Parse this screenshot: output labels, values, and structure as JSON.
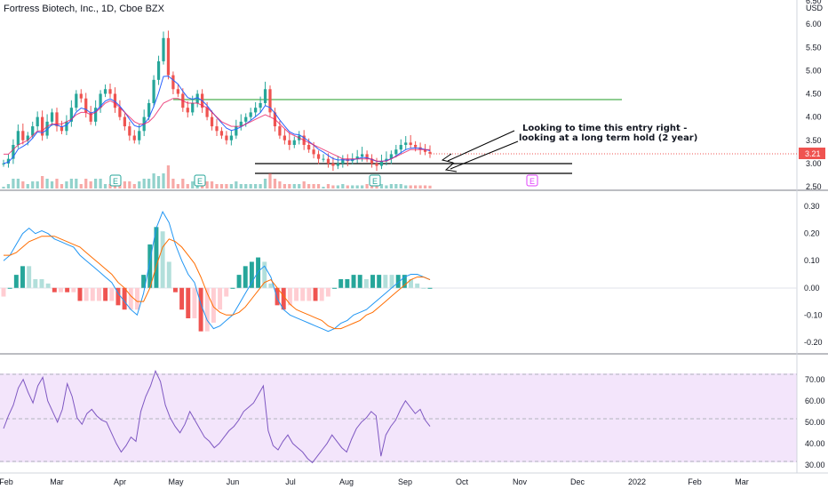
{
  "chart_data": {
    "type": "candlestick-with-indicators",
    "title": "Fortress Biotech, Inc., 1D, Cboe BZX",
    "currency": "USD",
    "last_price": "3.21",
    "x_ticks": [
      "Feb",
      "Mar",
      "Apr",
      "May",
      "Jun",
      "Jul",
      "Aug",
      "Sep",
      "Oct",
      "Nov",
      "Dec",
      "2022",
      "Feb",
      "Mar"
    ],
    "price_panel": {
      "y_ticks": [
        "6.50",
        "6.00",
        "5.50",
        "5.00",
        "4.50",
        "4.00",
        "3.50",
        "3.00",
        "2.50"
      ],
      "ylim": [
        2.5,
        6.5
      ],
      "horizontal_lines": [
        {
          "price": 4.35,
          "color": "#4caf50",
          "from": "Apr",
          "to": "Dec"
        },
        {
          "price": 3.0,
          "color": "#000000",
          "from": "Jun",
          "to": "Nov"
        },
        {
          "price": 2.8,
          "color": "#000000",
          "from": "Jun",
          "to": "Nov"
        }
      ],
      "earnings_markers": [
        "E",
        "E",
        "E",
        "E"
      ],
      "annotation": "Looking to time this entry right - looking at a long term hold (2 year)",
      "close": [
        3.0,
        3.1,
        3.4,
        3.7,
        3.5,
        3.6,
        3.8,
        4.0,
        3.6,
        3.9,
        4.1,
        3.8,
        3.7,
        3.9,
        4.2,
        4.5,
        4.4,
        4.1,
        3.9,
        4.2,
        4.5,
        4.6,
        4.5,
        4.2,
        4.0,
        3.8,
        3.6,
        3.5,
        3.7,
        4.0,
        4.3,
        4.8,
        5.2,
        5.7,
        4.9,
        4.6,
        4.5,
        4.2,
        4.1,
        4.3,
        4.5,
        4.2,
        4.0,
        3.8,
        3.7,
        3.6,
        3.5,
        3.6,
        3.8,
        3.9,
        4.0,
        4.1,
        4.2,
        4.3,
        4.6,
        4.1,
        3.8,
        3.6,
        3.5,
        3.4,
        3.5,
        3.6,
        3.4,
        3.3,
        3.2,
        3.1,
        3.1,
        3.0,
        2.95,
        3.0,
        3.1,
        3.05,
        3.1,
        3.15,
        3.2,
        3.1,
        3.0,
        2.95,
        3.05,
        3.1,
        3.2,
        3.3,
        3.4,
        3.45,
        3.4,
        3.35,
        3.3,
        3.25,
        3.21
      ],
      "ma_slow": [
        3.2,
        3.2,
        3.3,
        3.4,
        3.45,
        3.5,
        3.6,
        3.7,
        3.7,
        3.8,
        3.85,
        3.85,
        3.85,
        3.9,
        3.95,
        4.05,
        4.1,
        4.1,
        4.05,
        4.1,
        4.2,
        4.3,
        4.35,
        4.3,
        4.2,
        4.1,
        4.0,
        3.9,
        3.85,
        3.85,
        3.9,
        4.0,
        4.15,
        4.3,
        4.35,
        4.4,
        4.4,
        4.35,
        4.3,
        4.3,
        4.3,
        4.25,
        4.2,
        4.1,
        4.0,
        3.9,
        3.85,
        3.8,
        3.8,
        3.8,
        3.85,
        3.9,
        3.95,
        4.0,
        4.05,
        4.0,
        3.95,
        3.85,
        3.75,
        3.65,
        3.6,
        3.55,
        3.5,
        3.45,
        3.4,
        3.35,
        3.3,
        3.25,
        3.2,
        3.15,
        3.1,
        3.1,
        3.1,
        3.1,
        3.1,
        3.1,
        3.1,
        3.05,
        3.05,
        3.05,
        3.1,
        3.15,
        3.2,
        3.25,
        3.3,
        3.3,
        3.3,
        3.3,
        3.3
      ]
    },
    "macd_panel": {
      "y_ticks": [
        "0.30",
        "0.20",
        "0.10",
        "0.00",
        "-0.10",
        "-0.20"
      ],
      "ylim": [
        -0.22,
        0.32
      ],
      "macd": [
        0.1,
        0.12,
        0.16,
        0.2,
        0.22,
        0.2,
        0.21,
        0.2,
        0.18,
        0.17,
        0.16,
        0.15,
        0.12,
        0.1,
        0.08,
        0.06,
        0.04,
        0.02,
        -0.02,
        -0.05,
        -0.08,
        -0.1,
        -0.02,
        0.1,
        0.22,
        0.28,
        0.24,
        0.16,
        0.1,
        0.05,
        0.02,
        -0.06,
        -0.12,
        -0.15,
        -0.14,
        -0.12,
        -0.1,
        -0.06,
        -0.02,
        0.02,
        0.06,
        0.08,
        0.04,
        -0.04,
        -0.08,
        -0.1,
        -0.11,
        -0.12,
        -0.13,
        -0.14,
        -0.15,
        -0.16,
        -0.15,
        -0.13,
        -0.12,
        -0.1,
        -0.09,
        -0.08,
        -0.06,
        -0.04,
        -0.02,
        0.0,
        0.02,
        0.04,
        0.05,
        0.05,
        0.04,
        0.03
      ],
      "signal": [
        0.12,
        0.12,
        0.13,
        0.15,
        0.17,
        0.18,
        0.19,
        0.19,
        0.19,
        0.18,
        0.17,
        0.16,
        0.15,
        0.13,
        0.11,
        0.09,
        0.07,
        0.05,
        0.02,
        0.0,
        -0.03,
        -0.05,
        -0.05,
        0.0,
        0.08,
        0.15,
        0.18,
        0.17,
        0.15,
        0.12,
        0.09,
        0.04,
        -0.02,
        -0.07,
        -0.09,
        -0.1,
        -0.1,
        -0.09,
        -0.07,
        -0.04,
        -0.01,
        0.02,
        0.03,
        0.0,
        -0.03,
        -0.06,
        -0.08,
        -0.09,
        -0.1,
        -0.11,
        -0.12,
        -0.14,
        -0.15,
        -0.15,
        -0.14,
        -0.13,
        -0.12,
        -0.1,
        -0.09,
        -0.07,
        -0.05,
        -0.03,
        -0.01,
        0.01,
        0.03,
        0.04,
        0.04,
        0.03
      ]
    },
    "rsi_panel": {
      "y_ticks": [
        "70.00",
        "60.00",
        "50.00",
        "40.00",
        "30.00"
      ],
      "ylim": [
        27,
        77
      ],
      "band": [
        30,
        70
      ],
      "rsi": [
        47,
        53,
        58,
        66,
        70,
        64,
        59,
        67,
        71,
        60,
        55,
        50,
        56,
        68,
        62,
        52,
        49,
        54,
        56,
        53,
        51,
        50,
        45,
        40,
        36,
        39,
        43,
        41,
        55,
        62,
        67,
        74,
        69,
        58,
        52,
        48,
        45,
        49,
        55,
        51,
        47,
        43,
        41,
        38,
        40,
        43,
        46,
        48,
        51,
        55,
        57,
        59,
        63,
        67,
        46,
        39,
        37,
        41,
        44,
        40,
        38,
        36,
        33,
        31,
        34,
        37,
        40,
        44,
        41,
        38,
        36,
        42,
        47,
        50,
        52,
        55,
        53,
        34,
        44,
        48,
        51,
        56,
        60,
        57,
        54,
        56,
        51,
        48
      ]
    }
  }
}
